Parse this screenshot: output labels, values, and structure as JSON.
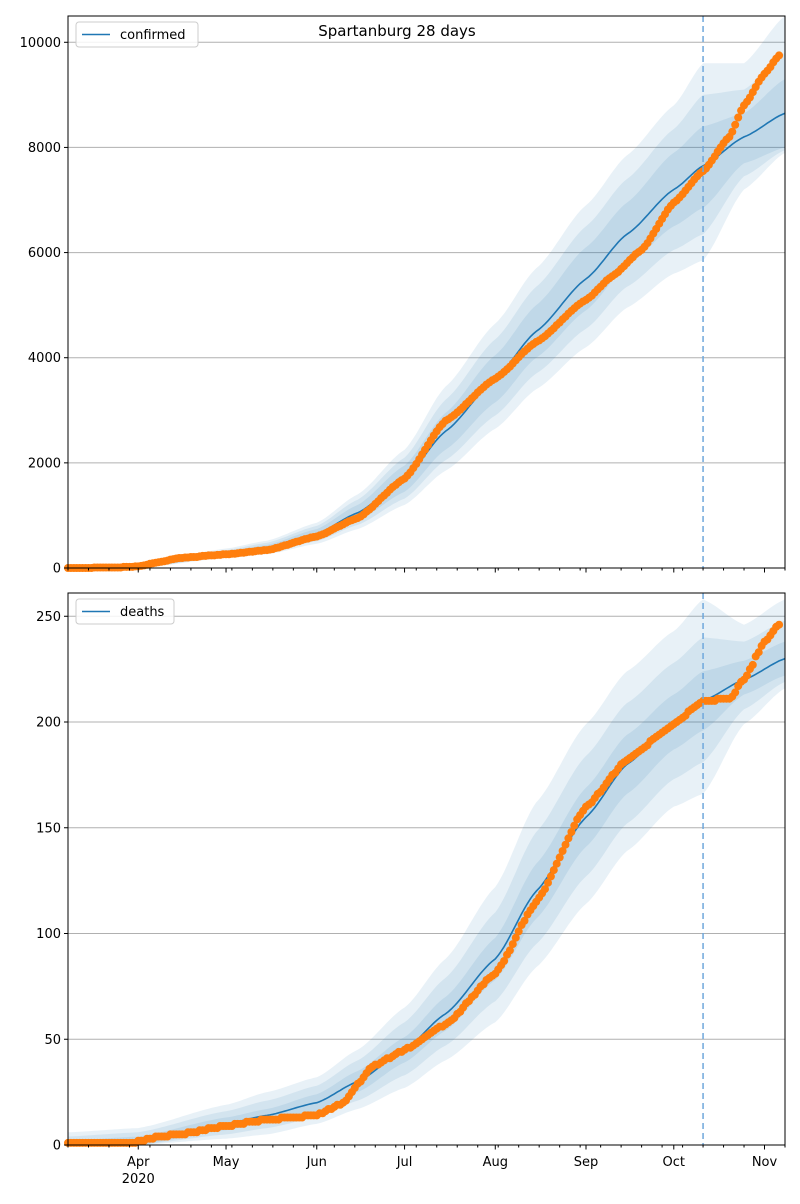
{
  "title": "Spartanburg 28 days",
  "colors": {
    "model": "#1f77b4",
    "observed": "#ff7f0e",
    "band": "#1f77b4",
    "cutoff": "#6fa8dc",
    "grid": "#b0b0b0",
    "axis": "#000000"
  },
  "x_axis": {
    "range": [
      "2020-03-08",
      "2020-11-08"
    ],
    "ticks": [
      {
        "date": "2020-04-01",
        "label": "Apr",
        "sublabel": "2020"
      },
      {
        "date": "2020-05-01",
        "label": "May",
        "sublabel": ""
      },
      {
        "date": "2020-06-01",
        "label": "Jun",
        "sublabel": ""
      },
      {
        "date": "2020-07-01",
        "label": "Jul",
        "sublabel": ""
      },
      {
        "date": "2020-08-01",
        "label": "Aug",
        "sublabel": ""
      },
      {
        "date": "2020-09-01",
        "label": "Sep",
        "sublabel": ""
      },
      {
        "date": "2020-10-01",
        "label": "Oct",
        "sublabel": ""
      },
      {
        "date": "2020-11-01",
        "label": "Nov",
        "sublabel": ""
      }
    ]
  },
  "chart_data": [
    {
      "type": "line",
      "legend": {
        "label": "confirmed",
        "placement": "top-left"
      },
      "ylim": [
        0,
        10500
      ],
      "yticks": [
        0,
        2000,
        4000,
        6000,
        8000,
        10000
      ],
      "grid": "horizontal",
      "cutoff_date": "2020-10-11",
      "model": {
        "dates": [
          "2020-03-08",
          "2020-04-01",
          "2020-05-01",
          "2020-05-15",
          "2020-06-01",
          "2020-06-15",
          "2020-07-01",
          "2020-07-15",
          "2020-08-01",
          "2020-08-15",
          "2020-09-01",
          "2020-09-15",
          "2020-10-01",
          "2020-10-11",
          "2020-10-25",
          "2020-11-08"
        ],
        "values": [
          0,
          20,
          270,
          380,
          650,
          1050,
          1700,
          2600,
          3600,
          4500,
          5500,
          6350,
          7200,
          7650,
          8200,
          8650
        ],
        "bands": [
          {
            "lower": [
              0,
              0,
              230,
              320,
              560,
              900,
              1450,
              2250,
              3150,
              4000,
              4900,
              5750,
              6500,
              6850,
              7700,
              8000
            ],
            "upper": [
              10,
              40,
              310,
              440,
              740,
              1200,
              1950,
              2950,
              4050,
              5000,
              6100,
              6950,
              7900,
              8400,
              8650,
              9300
            ]
          },
          {
            "lower": [
              0,
              0,
              210,
              290,
              510,
              820,
              1320,
              2050,
              2900,
              3700,
              4550,
              5350,
              6050,
              6350,
              7450,
              7950
            ],
            "upper": [
              20,
              60,
              340,
              480,
              800,
              1300,
              2100,
              3200,
              4350,
              5350,
              6500,
              7400,
              8350,
              9000,
              9100,
              9800
            ]
          },
          {
            "lower": [
              0,
              0,
              190,
              260,
              460,
              740,
              1200,
              1850,
              2650,
              3400,
              4200,
              4950,
              5600,
              5850,
              7200,
              7900
            ],
            "upper": [
              30,
              80,
              370,
              520,
              860,
              1400,
              2250,
              3450,
              4650,
              5700,
              6900,
              7850,
              8800,
              9600,
              9600,
              10500
            ]
          }
        ]
      },
      "observed": {
        "dates": [
          "2020-03-08",
          "2020-03-25",
          "2020-04-01",
          "2020-04-08",
          "2020-04-15",
          "2020-05-01",
          "2020-05-15",
          "2020-06-01",
          "2020-06-15",
          "2020-07-01",
          "2020-07-15",
          "2020-08-01",
          "2020-08-15",
          "2020-09-01",
          "2020-09-10",
          "2020-09-20",
          "2020-10-01",
          "2020-10-11",
          "2020-10-20",
          "2020-10-25",
          "2020-11-01",
          "2020-11-06"
        ],
        "values": [
          0,
          10,
          30,
          110,
          190,
          260,
          340,
          600,
          950,
          1700,
          2800,
          3600,
          4300,
          5100,
          5550,
          6050,
          6950,
          7550,
          8200,
          8800,
          9400,
          9750
        ]
      }
    },
    {
      "type": "line",
      "legend": {
        "label": "deaths",
        "placement": "top-left"
      },
      "ylim": [
        0,
        261
      ],
      "yticks": [
        0,
        50,
        100,
        150,
        200,
        250
      ],
      "grid": "horizontal",
      "cutoff_date": "2020-10-11",
      "model": {
        "dates": [
          "2020-03-08",
          "2020-04-01",
          "2020-05-01",
          "2020-05-15",
          "2020-06-01",
          "2020-06-15",
          "2020-07-01",
          "2020-07-15",
          "2020-08-01",
          "2020-08-15",
          "2020-09-01",
          "2020-09-15",
          "2020-10-01",
          "2020-10-11",
          "2020-10-25",
          "2020-11-08"
        ],
        "values": [
          0,
          1,
          10,
          14,
          20,
          30,
          45,
          62,
          88,
          120,
          155,
          180,
          200,
          210,
          220,
          230
        ],
        "bands": [
          {
            "lower": [
              0,
              0,
              7,
              11,
              16,
              25,
              39,
              54,
              78,
              107,
              141,
              166,
              187,
              196,
              213,
              222
            ],
            "upper": [
              2,
              4,
              13,
              17,
              24,
              35,
              51,
              70,
              98,
              133,
              169,
              194,
              213,
              224,
              229,
              238
            ]
          },
          {
            "lower": [
              0,
              0,
              5,
              8,
              13,
              21,
              33,
              47,
              68,
              95,
              127,
              152,
              173,
              181,
              206,
              219
            ],
            "upper": [
              4,
              6,
              16,
              21,
              28,
              40,
              58,
              79,
              110,
              148,
              184,
              209,
              228,
              240,
              238,
              248
            ]
          },
          {
            "lower": [
              0,
              0,
              3,
              5,
              10,
              17,
              27,
              40,
              58,
              84,
              114,
              139,
              160,
              166,
              199,
              216
            ],
            "upper": [
              6,
              8,
              19,
              25,
              32,
              45,
              65,
              88,
              122,
              162,
              199,
              224,
              243,
              258,
              246,
              258
            ]
          }
        ]
      },
      "observed": {
        "dates": [
          "2020-03-08",
          "2020-03-30",
          "2020-04-08",
          "2020-04-15",
          "2020-05-01",
          "2020-05-15",
          "2020-06-01",
          "2020-06-10",
          "2020-06-20",
          "2020-07-01",
          "2020-07-15",
          "2020-08-01",
          "2020-08-15",
          "2020-09-01",
          "2020-09-15",
          "2020-10-01",
          "2020-10-11",
          "2020-10-20",
          "2020-10-25",
          "2020-11-01",
          "2020-11-06"
        ],
        "values": [
          1,
          1,
          4,
          5,
          9,
          12,
          14,
          20,
          37,
          45,
          57,
          81,
          115,
          160,
          182,
          199,
          210,
          211,
          220,
          238,
          246
        ]
      }
    }
  ]
}
